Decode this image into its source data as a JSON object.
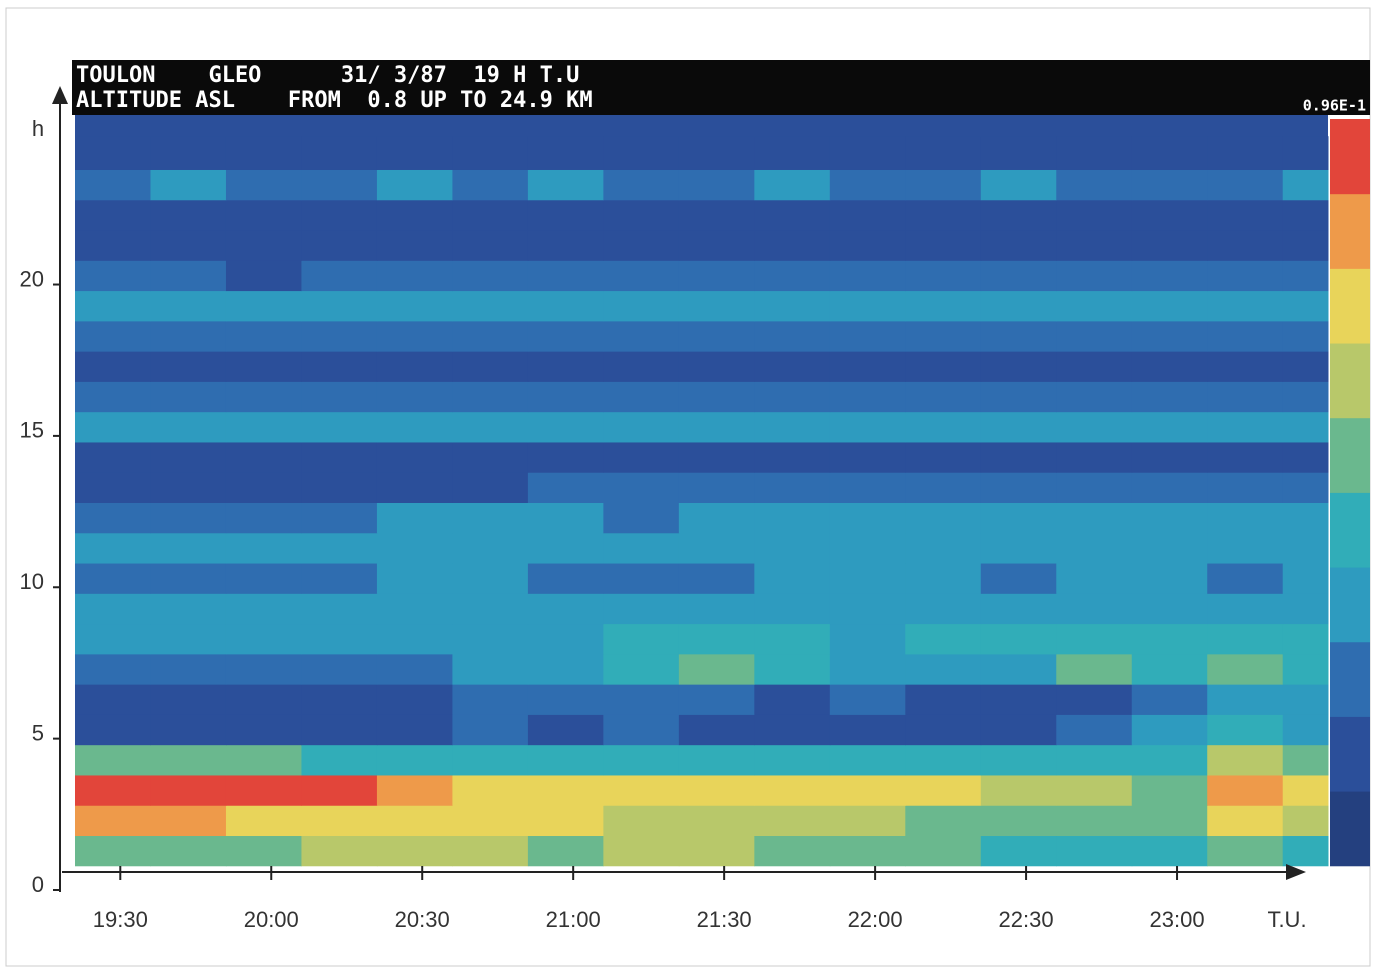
{
  "chart_data": {
    "type": "heatmap",
    "title": "TOULON    GLEO      31/ 3/87  19 H T.U",
    "subtitle": "ALTITUDE ASL    FROM  0.8 UP TO 24.9 KM",
    "colorbar_label": "0.96E-1",
    "x_label": "T.U.",
    "y_label": "h",
    "xlim": [
      19.35,
      23.5
    ],
    "ylim": [
      0,
      25.6
    ],
    "xticks": [
      {
        "value": 19.5,
        "label": "19:30"
      },
      {
        "value": 20,
        "label": "20:00"
      },
      {
        "value": 20.5,
        "label": "20:30"
      },
      {
        "value": 21,
        "label": "21:00"
      },
      {
        "value": 21.5,
        "label": "21:30"
      },
      {
        "value": 22,
        "label": "22:00"
      },
      {
        "value": 22.5,
        "label": "22:30"
      },
      {
        "value": 23,
        "label": "23:00"
      }
    ],
    "yticks": [
      0,
      5,
      10,
      15,
      20
    ],
    "x_edges": [
      19.35,
      19.6,
      19.85,
      20.1,
      20.35,
      20.6,
      20.85,
      21.1,
      21.35,
      21.6,
      21.85,
      22.1,
      22.35,
      22.6,
      22.85,
      23.1,
      23.35,
      23.5
    ],
    "y_edges": [
      0.8,
      1.8,
      2.8,
      3.8,
      4.8,
      5.8,
      6.8,
      7.8,
      8.8,
      9.8,
      10.8,
      11.8,
      12.8,
      13.8,
      14.8,
      15.8,
      16.8,
      17.8,
      18.8,
      19.8,
      20.8,
      21.8,
      22.8,
      23.8,
      24.9
    ],
    "colorscale": [
      "#24407f",
      "#2b4f9a",
      "#2f6db0",
      "#2e9bbf",
      "#31adb8",
      "#6ab88e",
      "#b8c86a",
      "#e8d45a",
      "#ee9a4a",
      "#e2453a"
    ],
    "z": [
      [
        5,
        5,
        5,
        6,
        6,
        6,
        5,
        6,
        6,
        5,
        5,
        5,
        4,
        4,
        4,
        5,
        4
      ],
      [
        8,
        8,
        7,
        7,
        7,
        7,
        7,
        6,
        6,
        6,
        6,
        5,
        5,
        5,
        5,
        7,
        6
      ],
      [
        9,
        9,
        9,
        9,
        8,
        7,
        7,
        7,
        7,
        7,
        7,
        7,
        6,
        6,
        5,
        8,
        7
      ],
      [
        5,
        5,
        5,
        4,
        4,
        4,
        4,
        4,
        4,
        4,
        4,
        4,
        4,
        4,
        4,
        6,
        5
      ],
      [
        1,
        1,
        1,
        1,
        1,
        2,
        1,
        2,
        1,
        1,
        1,
        1,
        1,
        2,
        3,
        4,
        3
      ],
      [
        1,
        1,
        1,
        1,
        1,
        2,
        2,
        2,
        2,
        1,
        2,
        1,
        1,
        1,
        2,
        3,
        3
      ],
      [
        2,
        2,
        2,
        2,
        2,
        3,
        3,
        4,
        5,
        4,
        3,
        3,
        3,
        5,
        4,
        5,
        4
      ],
      [
        3,
        3,
        3,
        3,
        3,
        3,
        3,
        4,
        4,
        4,
        3,
        4,
        4,
        4,
        4,
        4,
        4
      ],
      [
        3,
        3,
        3,
        3,
        3,
        3,
        3,
        3,
        3,
        3,
        3,
        3,
        3,
        3,
        3,
        3,
        3
      ],
      [
        2,
        2,
        2,
        2,
        3,
        3,
        2,
        2,
        2,
        3,
        3,
        3,
        2,
        3,
        3,
        2,
        3
      ],
      [
        3,
        3,
        3,
        3,
        3,
        3,
        3,
        3,
        3,
        3,
        3,
        3,
        3,
        3,
        3,
        3,
        3
      ],
      [
        2,
        2,
        2,
        2,
        3,
        3,
        3,
        2,
        3,
        3,
        3,
        3,
        3,
        3,
        3,
        3,
        3
      ],
      [
        1,
        1,
        1,
        1,
        1,
        1,
        2,
        2,
        2,
        2,
        2,
        2,
        2,
        2,
        2,
        2,
        2
      ],
      [
        1,
        1,
        1,
        1,
        1,
        1,
        1,
        1,
        1,
        1,
        1,
        1,
        1,
        1,
        1,
        1,
        1
      ],
      [
        3,
        3,
        3,
        3,
        3,
        3,
        3,
        3,
        3,
        3,
        3,
        3,
        3,
        3,
        3,
        3,
        3
      ],
      [
        2,
        2,
        2,
        2,
        2,
        2,
        2,
        2,
        2,
        2,
        2,
        2,
        2,
        2,
        2,
        2,
        2
      ],
      [
        1,
        1,
        1,
        1,
        1,
        1,
        1,
        1,
        1,
        1,
        1,
        1,
        1,
        1,
        1,
        1,
        1
      ],
      [
        2,
        2,
        2,
        2,
        2,
        2,
        2,
        2,
        2,
        2,
        2,
        2,
        2,
        2,
        2,
        2,
        2
      ],
      [
        3,
        3,
        3,
        3,
        3,
        3,
        3,
        3,
        3,
        3,
        3,
        3,
        3,
        3,
        3,
        3,
        3
      ],
      [
        2,
        2,
        1,
        2,
        2,
        2,
        2,
        2,
        2,
        2,
        2,
        2,
        2,
        2,
        2,
        2,
        2
      ],
      [
        1,
        1,
        1,
        1,
        1,
        1,
        1,
        1,
        1,
        1,
        1,
        1,
        1,
        1,
        1,
        1,
        1
      ],
      [
        1,
        1,
        1,
        1,
        1,
        1,
        1,
        1,
        1,
        1,
        1,
        1,
        1,
        1,
        1,
        1,
        1
      ],
      [
        2,
        3,
        2,
        2,
        3,
        2,
        3,
        2,
        2,
        3,
        2,
        2,
        3,
        2,
        2,
        2,
        3
      ],
      [
        1,
        1,
        1,
        1,
        1,
        1,
        1,
        1,
        1,
        1,
        1,
        1,
        1,
        1,
        1,
        1,
        1
      ]
    ]
  }
}
